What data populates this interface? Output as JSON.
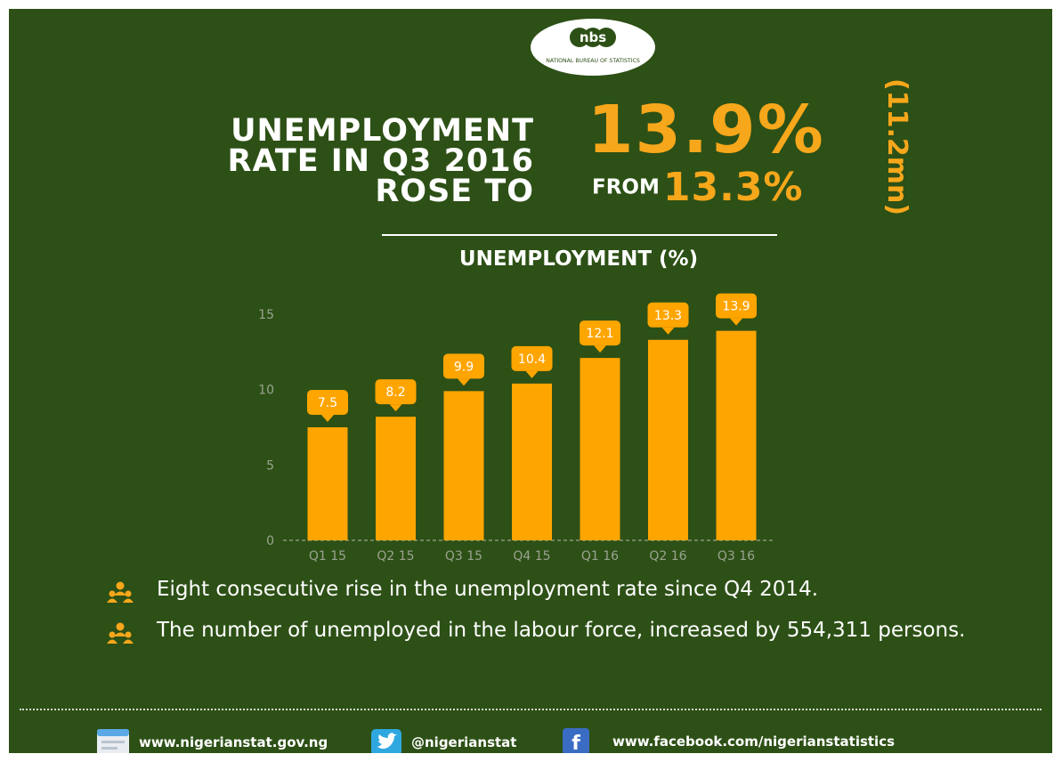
{
  "logo": {
    "mark": "nbs",
    "caption": "NATIONAL BUREAU OF STATISTICS"
  },
  "headline": {
    "line1": "UNEMPLOYMENT",
    "line2": "RATE IN Q3 2016",
    "line3": "ROSE TO",
    "current_rate": "13.9%",
    "from_word": "FROM",
    "previous_rate": "13.3%",
    "unemployed_count": "(11.2mn)"
  },
  "chart_data": {
    "type": "bar",
    "title": "UNEMPLOYMENT (%)",
    "categories": [
      "Q1 15",
      "Q2 15",
      "Q3 15",
      "Q4 15",
      "Q1 16",
      "Q2 16",
      "Q3 16"
    ],
    "values": [
      7.5,
      8.2,
      9.9,
      10.4,
      12.1,
      13.3,
      13.9
    ],
    "data_labels": [
      "7.5",
      "8.2",
      "9.9",
      "10.4",
      "12.1",
      "13.3",
      "13.9"
    ],
    "yticks": [
      "0",
      "5",
      "10",
      "15"
    ],
    "ylim": [
      0,
      15
    ],
    "xlabel": "",
    "ylabel": "",
    "grid": false,
    "bar_color": "#ffa500",
    "tick_color": "#9aa390"
  },
  "bullets": [
    {
      "icon": "people-icon",
      "text": "Eight consecutive rise in the unemployment rate since Q4 2014."
    },
    {
      "icon": "people-icon",
      "text": "The number of unemployed in the labour force, increased by 554,311  persons."
    }
  ],
  "footer": {
    "website": "www.nigerianstat.gov.ng",
    "twitter": "@nigerianstat",
    "facebook": "www.facebook.com/nigerianstatistics"
  },
  "colors": {
    "background": "#2d5016",
    "accent": "#f7a71b",
    "text": "#ffffff"
  }
}
